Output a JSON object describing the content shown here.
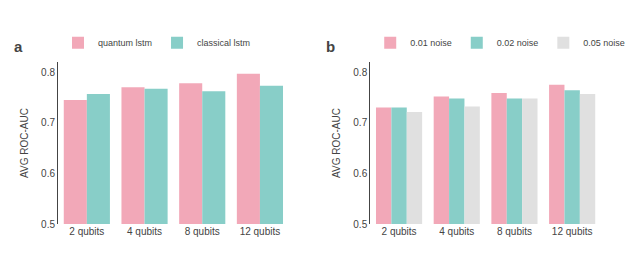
{
  "chart_data": [
    {
      "type": "bar",
      "title": "a",
      "categories": [
        "2 qubits",
        "4 qubits",
        "8 qubits",
        "12 qubits"
      ],
      "series": [
        {
          "name": "quantum lstm",
          "values": [
            0.745,
            0.77,
            0.778,
            0.797
          ],
          "color": "#F2A8B8"
        },
        {
          "name": "classical lstm",
          "values": [
            0.757,
            0.767,
            0.762,
            0.773
          ],
          "color": "#88CEC8"
        }
      ],
      "ylabel": "AVG ROC-AUC",
      "ylim": [
        0.5,
        0.82
      ],
      "yticks": [
        0.5,
        0.6,
        0.7,
        0.8
      ],
      "grid": false,
      "legend": "upper left"
    },
    {
      "type": "bar",
      "title": "b",
      "categories": [
        "2 qubits",
        "4 qubits",
        "8 qubits",
        "12 qubits"
      ],
      "series": [
        {
          "name": "0.01 noise",
          "values": [
            0.73,
            0.752,
            0.759,
            0.775
          ],
          "color": "#F2A8B8"
        },
        {
          "name": "0.02 noise",
          "values": [
            0.73,
            0.748,
            0.748,
            0.764
          ],
          "color": "#88CEC8"
        },
        {
          "name": "0.05 noise",
          "values": [
            0.721,
            0.732,
            0.748,
            0.757
          ],
          "color": "#E0E0E0"
        }
      ],
      "ylabel": "AVG ROC-AUC",
      "ylim": [
        0.5,
        0.82
      ],
      "yticks": [
        0.5,
        0.6,
        0.7,
        0.8
      ],
      "grid": false,
      "legend": "upper left"
    }
  ]
}
